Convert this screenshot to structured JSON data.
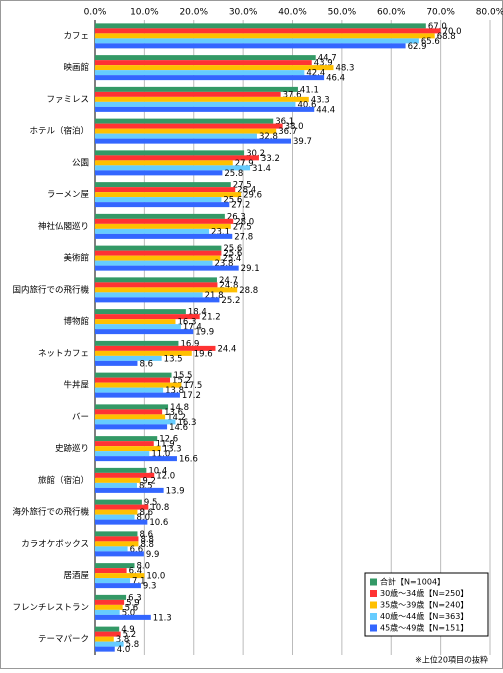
{
  "chart_data": {
    "type": "bar",
    "orientation": "horizontal",
    "categories": [
      "カフェ",
      "映画館",
      "ファミレス",
      "ホテル（宿泊）",
      "公園",
      "ラーメン屋",
      "神社仏閣巡り",
      "美術館",
      "国内旅行での飛行機",
      "博物館",
      "ネットカフェ",
      "牛丼屋",
      "バー",
      "史跡巡り",
      "旅館（宿泊）",
      "海外旅行での飛行機",
      "カラオケボックス",
      "居酒屋",
      "フレンチレストラン",
      "テーマパーク"
    ],
    "series": [
      {
        "name": "合計【N=1004】",
        "color": "#339966",
        "values": [
          67,
          44.7,
          41.1,
          36.1,
          30.2,
          27.5,
          26.3,
          25.6,
          24.7,
          18.4,
          16.9,
          15.5,
          14.8,
          12.6,
          10.4,
          9.5,
          8.6,
          8,
          6.3,
          4.9
        ],
        "value_labels": [
          "67.0",
          "44.7",
          "41.1",
          "36.1",
          "30.2",
          "27.5",
          "26.3",
          "25.6",
          "24.7",
          "18.4",
          "16.9",
          "15.5",
          "14.8",
          "12.6",
          "10.4",
          "9.5",
          "8.6",
          "8.0",
          "6.3",
          "4.9"
        ]
      },
      {
        "name": "30歳～34歳【N=250】",
        "color": "#ff3333",
        "values": [
          70,
          43.9,
          37.6,
          38,
          33.2,
          28.4,
          28,
          25.6,
          24.8,
          21.2,
          24.4,
          15.2,
          13.6,
          11.9,
          12,
          10.8,
          8.8,
          6.4,
          5.9,
          5.2
        ],
        "value_labels": [
          "70.0",
          "43.9",
          "37.6",
          "38.0",
          "33.2",
          "28.4",
          "28.0",
          "25.6",
          "24.8",
          "21.2",
          "24.4",
          "15.2",
          "13.6",
          "11.9",
          "12.0",
          "10.8",
          "8.8",
          "6.4",
          "5.9",
          "5.2"
        ]
      },
      {
        "name": "35歳～39歳【N=240】",
        "color": "#ffc000",
        "values": [
          68.8,
          48.3,
          43.3,
          36.7,
          27.9,
          29.6,
          27.5,
          25.4,
          28.8,
          16.3,
          19.6,
          17.5,
          14.2,
          13.3,
          9.2,
          8.6,
          8.8,
          10,
          5.6,
          3.8
        ],
        "value_labels": [
          "68.8",
          "48.3",
          "43.3",
          "36.7",
          "27.9",
          "29.6",
          "27.5",
          "25.4",
          "28.8",
          "16.3",
          "19.6",
          "17.5",
          "14.2",
          "13.3",
          "9.2",
          "8.6",
          "8.8",
          "10.0",
          "5.6",
          "3.8"
        ]
      },
      {
        "name": "40歳～44歳【N=363】",
        "color": "#66ccff",
        "values": [
          65.6,
          42.4,
          40.6,
          32.8,
          31.4,
          25.6,
          23.1,
          23.8,
          21.8,
          17.4,
          13.5,
          13.8,
          16.3,
          11,
          8.5,
          8,
          6.6,
          7.1,
          5,
          5.8
        ],
        "value_labels": [
          "65.6",
          "42.4",
          "40.6",
          "32.8",
          "31.4",
          "25.6",
          "23.1",
          "23.8",
          "21.8",
          "17.4",
          "13.5",
          "13.8",
          "16.3",
          "11.0",
          "8.5",
          "8.0",
          "6.6",
          "7.1",
          "5.0",
          "5.8"
        ]
      },
      {
        "name": "45歳～49歳【N=151】",
        "color": "#3366ff",
        "values": [
          62.9,
          46.4,
          44.4,
          39.7,
          25.8,
          27.2,
          27.8,
          29.1,
          25.2,
          19.9,
          8.6,
          17.2,
          14.6,
          16.6,
          13.9,
          10.6,
          9.9,
          9.3,
          11.3,
          4
        ],
        "value_labels": [
          "62.9",
          "46.4",
          "44.4",
          "39.7",
          "25.8",
          "27.2",
          "27.8",
          "29.1",
          "25.2",
          "19.9",
          "8.6",
          "17.2",
          "14.6",
          "16.6",
          "13.9",
          "10.6",
          "9.9",
          "9.3",
          "11.3",
          "4.0"
        ]
      }
    ],
    "xlim": [
      0,
      80
    ],
    "xticks": [
      {
        "value": 0,
        "label": "0.0%"
      },
      {
        "value": 10,
        "label": "10.0%"
      },
      {
        "value": 20,
        "label": "20.0%"
      },
      {
        "value": 30,
        "label": "30.0%"
      },
      {
        "value": 40,
        "label": "40.0%"
      },
      {
        "value": 50,
        "label": "50.0%"
      },
      {
        "value": 60,
        "label": "60.0%"
      },
      {
        "value": 70,
        "label": "70.0%"
      },
      {
        "value": 80,
        "label": "80.0%"
      }
    ],
    "grid": true,
    "legend": "lower right",
    "note": "※上位20項目の抜粋"
  }
}
